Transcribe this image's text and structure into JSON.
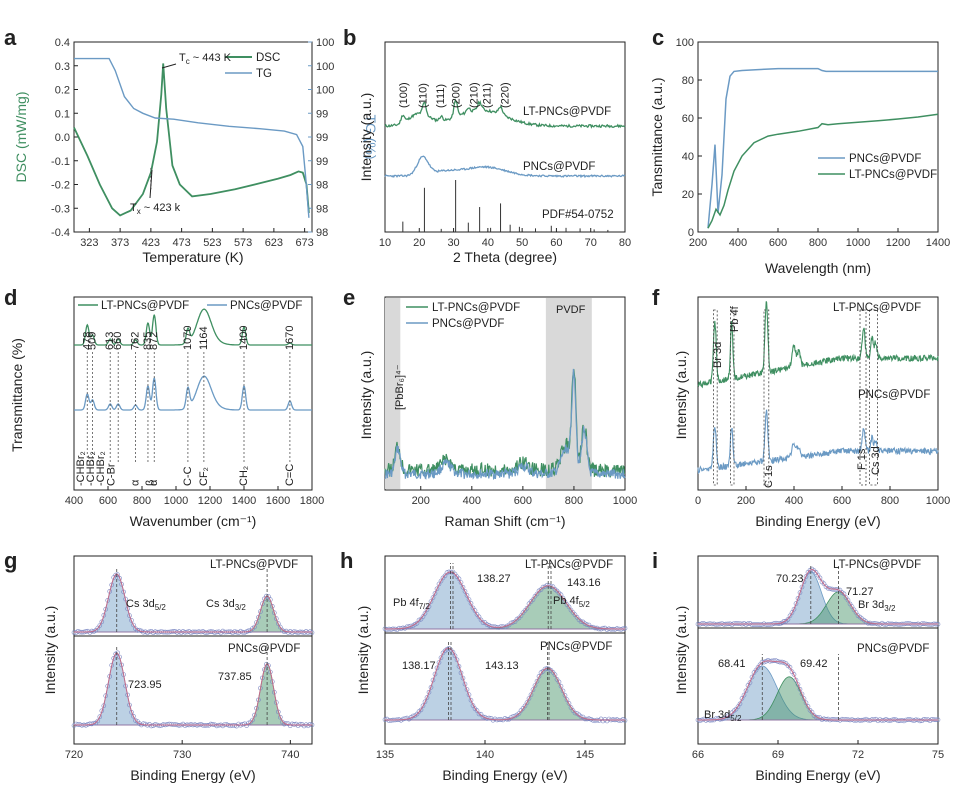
{
  "chart_data": [
    {
      "panel": "a",
      "type": "line",
      "xlabel": "Temperature (K)",
      "ylabel": "DSC (mW/mg)",
      "ylabel_right": "TG (%)",
      "xticks": [
        "323",
        "373",
        "423",
        "473",
        "523",
        "573",
        "623",
        "673"
      ],
      "yticks": [
        "-0.4",
        "-0.3",
        "-0.2",
        "-0.1",
        "0.0",
        "0.1",
        "0.2",
        "0.3",
        "0.4"
      ],
      "yticks_right": [
        "98",
        "98",
        "98",
        "99",
        "99",
        "99",
        "100",
        "100",
        "100"
      ],
      "xlim": [
        298,
        685
      ],
      "ylim": [
        -0.4,
        0.4
      ],
      "series": [
        {
          "name": "DSC",
          "color": "#3f8f61",
          "x": [
            298,
            320,
            340,
            360,
            373,
            390,
            410,
            423,
            433,
            440,
            443,
            448,
            458,
            470,
            490,
            520,
            560,
            600,
            630,
            650,
            663,
            670,
            676,
            680
          ],
          "y": [
            0.04,
            -0.08,
            -0.2,
            -0.3,
            -0.33,
            -0.31,
            -0.24,
            -0.15,
            -0.02,
            0.18,
            0.31,
            0.12,
            -0.12,
            -0.2,
            -0.25,
            -0.24,
            -0.22,
            -0.195,
            -0.175,
            -0.16,
            -0.145,
            -0.15,
            -0.2,
            -0.32
          ]
        },
        {
          "name": "TG",
          "color": "#6b9ac4",
          "x": [
            298,
            340,
            355,
            365,
            380,
            395,
            410,
            430,
            460,
            500,
            550,
            600,
            640,
            660,
            670,
            675,
            680
          ],
          "y": [
            0.33,
            0.33,
            0.33,
            0.28,
            0.17,
            0.12,
            0.1,
            0.08,
            0.075,
            0.06,
            0.045,
            0.035,
            0.025,
            0.01,
            -0.04,
            -0.18,
            -0.34
          ]
        }
      ],
      "annotations": [
        {
          "sym": "T",
          "sub": "c",
          "text": " ~ 443 K"
        },
        {
          "sym": "T",
          "sub": "x",
          "text": " ~ 423 k"
        }
      ]
    },
    {
      "panel": "b",
      "type": "line",
      "xlabel": "2 Theta (degree)",
      "ylabel": "Intensity (a.u.)",
      "xticks": [
        "10",
        "20",
        "30",
        "40",
        "50",
        "60",
        "70",
        "80"
      ],
      "xlim": [
        10,
        80
      ],
      "series": [
        {
          "name": "LT-PNCs@PVDF",
          "color": "#3f8f61"
        },
        {
          "name": "PNCs@PVDF",
          "color": "#6b9ac4"
        },
        {
          "name": "PDF#54-0752",
          "color": "#333333",
          "peaks_2theta": [
            15.2,
            21.5,
            26.4,
            30.6,
            34.3,
            37.6,
            40.8,
            43.7,
            46.5,
            49.2,
            53.9,
            58.5,
            62.8,
            66.9,
            71.0,
            75.0
          ],
          "peaks_rel": [
            0.2,
            0.85,
            0.06,
            1.0,
            0.18,
            0.48,
            0.08,
            0.55,
            0.14,
            0.1,
            0.07,
            0.12,
            0.08,
            0.07,
            0.05,
            0.04
          ]
        }
      ],
      "peak_labels": [
        "(100)",
        "(110)",
        "(111)",
        "(200)",
        "(210)",
        "(211)",
        "(220)"
      ]
    },
    {
      "panel": "c",
      "type": "line",
      "xlabel": "Wavelength (nm)",
      "ylabel": "Tansmittance (a.u.)",
      "xticks": [
        "200",
        "400",
        "600",
        "800",
        "1000",
        "1200",
        "1400"
      ],
      "yticks": [
        "0",
        "20",
        "40",
        "60",
        "80",
        "100"
      ],
      "xlim": [
        200,
        1400
      ],
      "ylim": [
        0,
        100
      ],
      "series": [
        {
          "name": "PNCs@PVDF",
          "color": "#6b9ac4",
          "x": [
            250,
            270,
            285,
            300,
            320,
            340,
            360,
            380,
            420,
            500,
            600,
            700,
            800,
            820,
            840,
            900,
            1000,
            1100,
            1200,
            1300,
            1400
          ],
          "y": [
            2,
            25,
            46,
            10,
            30,
            70,
            82,
            84.5,
            85,
            85.5,
            86,
            86,
            86,
            85,
            84.5,
            84.5,
            84.5,
            84.5,
            84.5,
            84.5,
            84.5
          ]
        },
        {
          "name": "LT-PNCs@PVDF",
          "color": "#3f8f61",
          "x": [
            250,
            270,
            290,
            310,
            330,
            350,
            380,
            420,
            480,
            550,
            600,
            700,
            800,
            820,
            850,
            900,
            1000,
            1100,
            1200,
            1300,
            1400
          ],
          "y": [
            2,
            6,
            12,
            9,
            14,
            22,
            32,
            40,
            47,
            50.5,
            51.5,
            53,
            55,
            57,
            56.5,
            57,
            57.8,
            58.5,
            59.5,
            60.5,
            62
          ]
        }
      ]
    },
    {
      "panel": "d",
      "type": "line",
      "xlabel": "Wavenumber (cm⁻¹)",
      "ylabel": "Transmittance (%)",
      "xticks": [
        "400",
        "600",
        "800",
        "1000",
        "1200",
        "1400",
        "1600",
        "1800"
      ],
      "xlim": [
        400,
        1800
      ],
      "series": [
        {
          "name": "LT-PNCs@PVDF",
          "color": "#3f8f61"
        },
        {
          "name": "PNCs@PVDF",
          "color": "#6b9ac4"
        }
      ],
      "peak_labels": [
        "478",
        "509",
        "613",
        "660",
        "762",
        "835",
        "872",
        "1070",
        "1164",
        "1400",
        "1670"
      ],
      "band_labels": [
        "-CHBr₂",
        "-CHBr₂",
        "-CHBr₂",
        "C-Br",
        "α",
        "β",
        "α",
        "C-C",
        "CF₂",
        "CH₂",
        "C=C"
      ]
    },
    {
      "panel": "e",
      "type": "line",
      "xlabel": "Raman Shift (cm⁻¹)",
      "ylabel": "Intensity (a.u.)",
      "xticks": [
        "200",
        "400",
        "600",
        "800",
        "1000"
      ],
      "xlim": [
        60,
        1000
      ],
      "series": [
        {
          "name": "LT-PNCs@PVDF",
          "color": "#3f8f61"
        },
        {
          "name": "PNCs@PVDF",
          "color": "#6b9ac4"
        }
      ],
      "shaded_labels": [
        "[PbBr₆]⁴⁻",
        "PVDF"
      ]
    },
    {
      "panel": "f",
      "type": "line",
      "xlabel": "Binding Energy (eV)",
      "ylabel": "Intensity (a.u.)",
      "xticks": [
        "0",
        "200",
        "400",
        "600",
        "800",
        "1000"
      ],
      "xlim": [
        0,
        1000
      ],
      "series": [
        {
          "name": "LT-PNCs@PVDF",
          "color": "#3f8f61"
        },
        {
          "name": "PNCs@PVDF",
          "color": "#6b9ac4"
        }
      ],
      "peak_labels": [
        "Br 3d",
        "Pb 4f",
        "C 1s",
        "F 1s",
        "Cs 3d"
      ]
    },
    {
      "panel": "g",
      "type": "line",
      "xlabel": "Binding Energy (eV)",
      "ylabel": "Intensity (a.u.)",
      "xticks": [
        "720",
        "730",
        "740"
      ],
      "xlim": [
        720,
        742
      ],
      "series": [
        {
          "name": "LT-PNCs@PVDF",
          "color": "#3f8f61"
        },
        {
          "name": "PNCs@PVDF",
          "color": "#6b9ac4"
        }
      ],
      "peaks": [
        {
          "label": "Cs 3d",
          "sub": "5/2",
          "be": 723.95
        },
        {
          "label": "Cs 3d",
          "sub": "3/2",
          "be": 737.85
        }
      ],
      "values": [
        "723.95",
        "737.85"
      ]
    },
    {
      "panel": "h",
      "type": "line",
      "xlabel": "Binding Energy (eV)",
      "ylabel": "Intensity (a.u.)",
      "xticks": [
        "135",
        "140",
        "145"
      ],
      "xlim": [
        135,
        147
      ],
      "series": [
        {
          "name": "LT-PNCs@PVDF",
          "color": "#3f8f61",
          "peaks": [
            138.27,
            143.16
          ]
        },
        {
          "name": "PNCs@PVDF",
          "color": "#6b9ac4",
          "peaks": [
            138.17,
            143.13
          ]
        }
      ],
      "peak_names": [
        {
          "label": "Pb 4f",
          "sub": "7/2"
        },
        {
          "label": "Pb 4f",
          "sub": "5/2"
        }
      ],
      "values": [
        "138.27",
        "143.16",
        "138.17",
        "143.13"
      ]
    },
    {
      "panel": "i",
      "type": "line",
      "xlabel": "Binding Energy (eV)",
      "ylabel": "Intensity (a.u.)",
      "xticks": [
        "66",
        "69",
        "72",
        "75"
      ],
      "xlim": [
        66,
        75
      ],
      "series": [
        {
          "name": "LT-PNCs@PVDF",
          "color": "#3f8f61",
          "peaks": [
            70.23,
            71.27
          ]
        },
        {
          "name": "PNCs@PVDF",
          "color": "#6b9ac4",
          "peaks": [
            68.41,
            69.42
          ]
        }
      ],
      "peak_names": [
        {
          "label": "Br 3d",
          "sub": "3/2"
        },
        {
          "label": "Br 3d",
          "sub": "5/2"
        }
      ],
      "values": [
        "70.23",
        "71.27",
        "68.41",
        "69.42"
      ]
    }
  ],
  "colors": {
    "green": "#3f8f61",
    "blue": "#6b9ac4",
    "greyband": "#d9d9d9"
  }
}
